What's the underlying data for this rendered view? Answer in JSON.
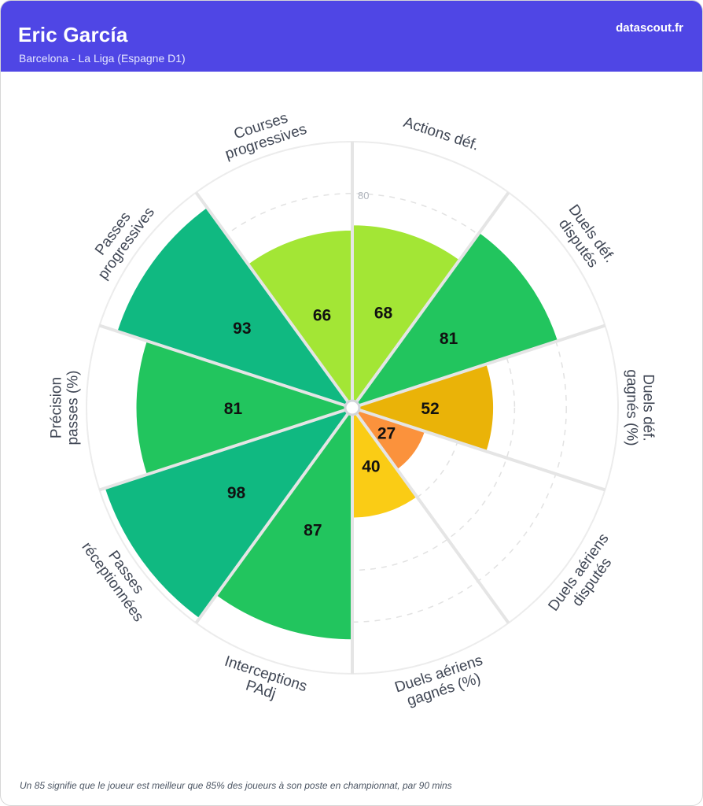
{
  "header": {
    "player_name": "Eric García",
    "team": "Barcelona - La Liga (Espagne D1)",
    "brand": "datascout.fr",
    "background_color": "#4f46e5"
  },
  "chart_data": {
    "type": "polar-bar",
    "max": 100,
    "ring_label": "80",
    "categories": [
      {
        "label_lines": [
          "Actions déf."
        ],
        "value": 68,
        "color": "#a3e635"
      },
      {
        "label_lines": [
          "Duels déf.",
          "disputés"
        ],
        "value": 81,
        "color": "#22c55e"
      },
      {
        "label_lines": [
          "Duels déf.",
          "gagnés (%)"
        ],
        "value": 52,
        "color": "#eab308"
      },
      {
        "label_lines": [
          "Duels aériens",
          "disputés"
        ],
        "value": 27,
        "color": "#fb923c"
      },
      {
        "label_lines": [
          "Duels aériens",
          "gagnés (%)"
        ],
        "value": 40,
        "color": "#facc15"
      },
      {
        "label_lines": [
          "Interceptions",
          "PAdj"
        ],
        "value": 87,
        "color": "#22c55e"
      },
      {
        "label_lines": [
          "Passes",
          "réceptionnées"
        ],
        "value": 98,
        "color": "#10b981"
      },
      {
        "label_lines": [
          "Précision",
          "passes (%)"
        ],
        "value": 81,
        "color": "#22c55e"
      },
      {
        "label_lines": [
          "Passes",
          "progressives"
        ],
        "value": 93,
        "color": "#10b981"
      },
      {
        "label_lines": [
          "Courses",
          "progressives"
        ],
        "value": 66,
        "color": "#a3e635"
      }
    ]
  },
  "footnote": "Un 85 signifie que le joueur est meilleur que 85% des joueurs à son poste en championnat, par 90 mins"
}
